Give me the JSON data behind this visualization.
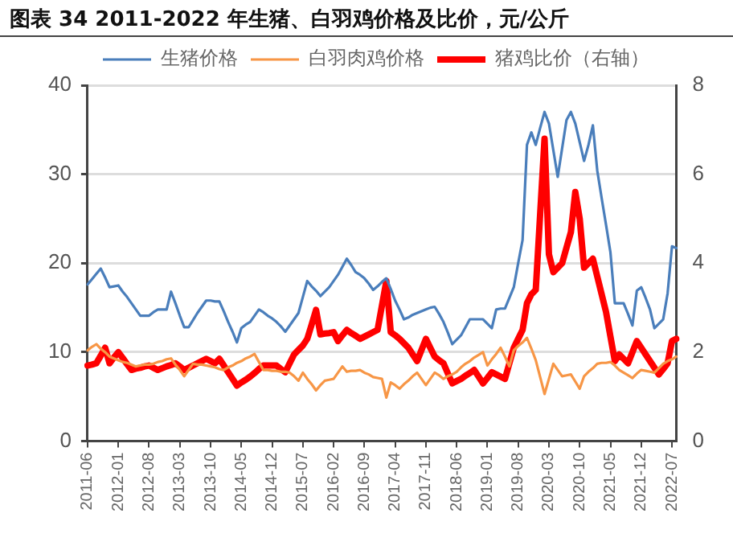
{
  "chart_data": {
    "type": "line",
    "title": "图表 34 2011-2022 年生猪、白羽鸡价格及比价，元/公斤",
    "categories": [
      "2011-06",
      null,
      null,
      null,
      null,
      null,
      null,
      "2012-01",
      null,
      null,
      null,
      null,
      null,
      null,
      "2012-08",
      null,
      null,
      null,
      null,
      null,
      null,
      "2013-03",
      null,
      null,
      null,
      null,
      null,
      null,
      "2013-10",
      null,
      null,
      null,
      null,
      null,
      null,
      "2014-05",
      null,
      null,
      null,
      null,
      null,
      null,
      "2014-12",
      null,
      null,
      null,
      null,
      null,
      null,
      "2015-07",
      null,
      null,
      null,
      null,
      null,
      null,
      "2016-02",
      null,
      null,
      null,
      null,
      null,
      null,
      "2016-09",
      null,
      null,
      null,
      null,
      null,
      null,
      "2017-04",
      null,
      null,
      null,
      null,
      null,
      null,
      "2017-11",
      null,
      null,
      null,
      null,
      null,
      null,
      "2018-06",
      null,
      null,
      null,
      null,
      null,
      null,
      "2019-01",
      null,
      null,
      null,
      null,
      null,
      null,
      "2019-08",
      null,
      null,
      null,
      null,
      null,
      null,
      "2020-03",
      null,
      null,
      null,
      null,
      null,
      null,
      "2020-10",
      null,
      null,
      null,
      null,
      null,
      null,
      "2021-05",
      null,
      null,
      null,
      null,
      null,
      null,
      "2021-12",
      null,
      null,
      null,
      null,
      null,
      null,
      "2022-07",
      null
    ],
    "ylim": [
      0,
      40
    ],
    "yticks": [
      0,
      10,
      20,
      30,
      40
    ],
    "y2lim": [
      0,
      8
    ],
    "y2ticks": [
      0,
      2,
      4,
      6,
      8
    ],
    "grid": "y",
    "legend": "top",
    "marker": "none",
    "line_style": "solid",
    "series": [
      {
        "name": "生猪价格",
        "color": "#4a7ebb",
        "values": [
          17.6,
          18.2,
          18.8,
          19.4,
          18.4,
          17.3,
          17.4,
          17.5,
          16.8,
          16.2,
          15.5,
          14.8,
          14.1,
          14.1,
          14.1,
          14.5,
          14.8,
          14.8,
          14.8,
          16.8,
          15.5,
          14.1,
          12.8,
          12.8,
          13.6,
          14.4,
          15.1,
          15.8,
          15.8,
          15.7,
          15.7,
          14.6,
          13.4,
          12.3,
          11.1,
          12.7,
          13.1,
          13.4,
          14.1,
          14.8,
          14.5,
          14.1,
          13.8,
          13.4,
          12.9,
          12.3,
          13.0,
          13.7,
          14.4,
          16.2,
          18.0,
          17.4,
          16.9,
          16.3,
          16.8,
          17.3,
          18.0,
          18.7,
          19.6,
          20.5,
          19.8,
          19.0,
          18.7,
          18.3,
          17.7,
          17.0,
          17.4,
          17.9,
          18.3,
          17.1,
          15.8,
          14.8,
          13.7,
          13.9,
          14.2,
          14.4,
          14.6,
          14.8,
          15.0,
          15.1,
          14.3,
          13.4,
          12.2,
          10.9,
          11.4,
          11.9,
          12.8,
          13.7,
          13.7,
          13.7,
          13.7,
          13.2,
          12.7,
          14.8,
          14.9,
          14.9,
          16.1,
          17.3,
          20.0,
          22.6,
          33.3,
          34.7,
          33.3,
          35.2,
          37.0,
          35.7,
          32.7,
          29.7,
          32.9,
          36.1,
          37.0,
          35.7,
          33.6,
          31.5,
          33.3,
          35.5,
          30.4,
          27.3,
          24.3,
          21.2,
          15.5,
          15.5,
          15.5,
          14.3,
          13.0,
          16.9,
          17.3,
          16.1,
          14.8,
          12.7,
          13.2,
          13.7,
          16.6,
          21.9,
          21.7
        ]
      },
      {
        "name": "白羽肉鸡价格",
        "color": "#f79646",
        "values": [
          10.2,
          10.6,
          10.9,
          10.4,
          10.0,
          9.5,
          9.3,
          9.1,
          8.9,
          8.8,
          8.6,
          8.4,
          8.5,
          8.6,
          8.6,
          8.7,
          8.9,
          9.0,
          9.2,
          9.3,
          8.6,
          8.0,
          7.3,
          8.0,
          8.7,
          8.6,
          8.6,
          8.5,
          8.4,
          8.3,
          8.1,
          8.0,
          8.3,
          8.5,
          8.8,
          9.0,
          9.3,
          9.5,
          9.8,
          8.9,
          8.0,
          8.0,
          7.9,
          7.9,
          7.8,
          7.8,
          7.7,
          7.3,
          6.8,
          7.7,
          7.0,
          6.4,
          5.7,
          6.3,
          6.8,
          6.9,
          7.0,
          7.7,
          8.4,
          7.8,
          7.9,
          7.9,
          8.0,
          7.7,
          7.5,
          7.2,
          7.1,
          7.0,
          4.9,
          6.6,
          6.3,
          5.9,
          6.4,
          6.8,
          7.3,
          7.7,
          7.0,
          6.3,
          7.0,
          7.7,
          7.4,
          7.0,
          7.3,
          7.5,
          7.8,
          8.3,
          8.7,
          9.0,
          9.4,
          9.7,
          10.0,
          8.5,
          9.2,
          9.8,
          10.5,
          9.5,
          8.4,
          10.2,
          10.7,
          11.1,
          11.6,
          10.4,
          9.1,
          7.2,
          5.3,
          7.0,
          8.7,
          8.0,
          7.3,
          7.4,
          7.5,
          6.7,
          5.9,
          7.3,
          7.8,
          8.2,
          8.7,
          8.8,
          8.8,
          8.9,
          8.5,
          8.0,
          7.7,
          7.4,
          7.1,
          7.6,
          8.0,
          7.9,
          7.8,
          7.7,
          8.2,
          8.7,
          9.0,
          9.2,
          9.5
        ]
      },
      {
        "name": "猪鸡比价（右轴）",
        "color": "#ff0000",
        "axis": "y2",
        "values": [
          1.7,
          1.72,
          1.75,
          1.92,
          2.1,
          1.75,
          1.88,
          2.0,
          1.87,
          1.73,
          1.6,
          1.63,
          1.65,
          1.68,
          1.7,
          1.65,
          1.6,
          1.64,
          1.68,
          1.71,
          1.75,
          1.68,
          1.6,
          1.65,
          1.7,
          1.75,
          1.8,
          1.85,
          1.8,
          1.75,
          1.85,
          1.7,
          1.55,
          1.4,
          1.25,
          1.32,
          1.38,
          1.45,
          1.53,
          1.62,
          1.7,
          1.7,
          1.7,
          1.7,
          1.62,
          1.55,
          1.75,
          1.95,
          2.05,
          2.15,
          2.3,
          2.62,
          2.95,
          2.4,
          2.42,
          2.43,
          2.45,
          2.25,
          2.38,
          2.5,
          2.43,
          2.37,
          2.3,
          2.35,
          2.4,
          2.45,
          2.5,
          3.05,
          3.6,
          2.45,
          2.38,
          2.3,
          2.2,
          2.1,
          1.95,
          1.8,
          2.05,
          2.3,
          2.1,
          1.9,
          1.82,
          1.75,
          1.52,
          1.3,
          1.35,
          1.4,
          1.47,
          1.53,
          1.6,
          1.45,
          1.3,
          1.42,
          1.55,
          1.5,
          1.45,
          1.4,
          1.75,
          2.1,
          2.3,
          2.5,
          3.1,
          3.3,
          3.4,
          5.1,
          6.8,
          4.2,
          3.8,
          3.9,
          4.0,
          4.35,
          4.7,
          5.6,
          5.0,
          3.9,
          4.0,
          4.1,
          3.7,
          3.3,
          2.9,
          2.35,
          1.8,
          1.95,
          1.85,
          1.75,
          2.0,
          2.25,
          2.1,
          1.95,
          1.8,
          1.65,
          1.5,
          1.62,
          1.75,
          2.25,
          2.3
        ]
      }
    ]
  }
}
